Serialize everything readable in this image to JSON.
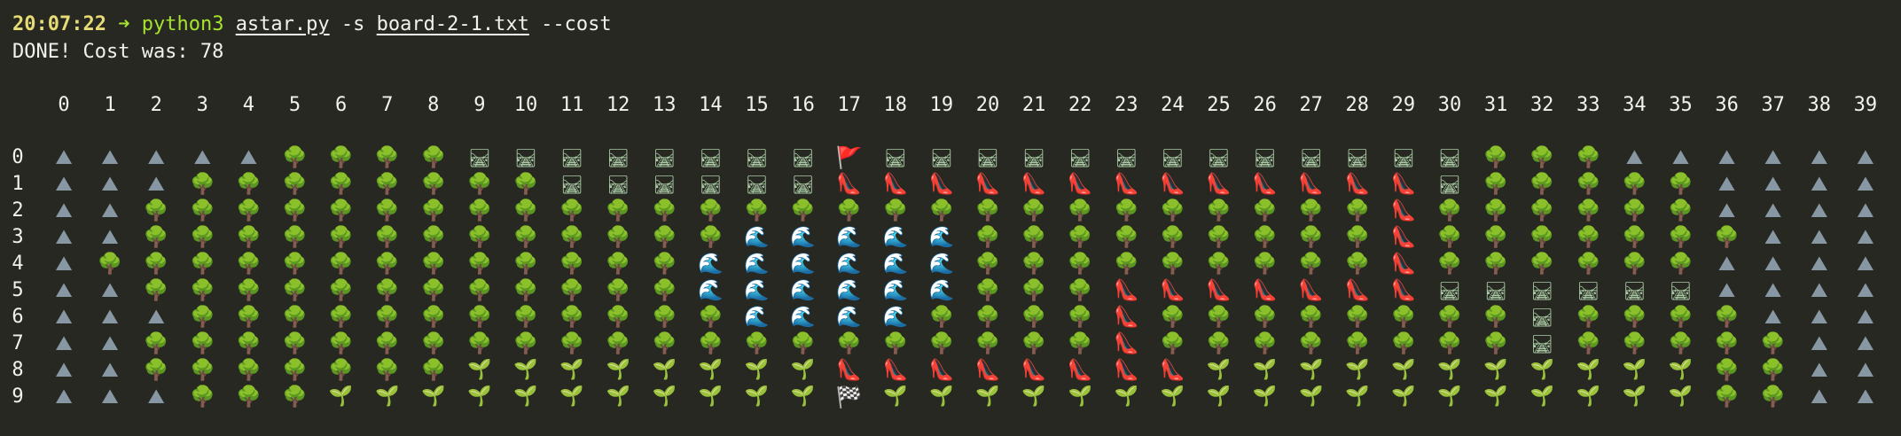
{
  "terminal": {
    "prompt_time": "20:07:22",
    "prompt_arrow": "➜",
    "command": "python3",
    "script_arg": "astar.py",
    "flag_s": "-s",
    "board_arg": "board-2-1.txt",
    "flag_cost": "--cost",
    "output_line": "DONE! Cost was: 78"
  },
  "board": {
    "column_labels": [
      "0",
      "1",
      "2",
      "3",
      "4",
      "5",
      "6",
      "7",
      "8",
      "9",
      "10",
      "11",
      "12",
      "13",
      "14",
      "15",
      "16",
      "17",
      "18",
      "19",
      "20",
      "21",
      "22",
      "23",
      "24",
      "25",
      "26",
      "27",
      "28",
      "29",
      "30",
      "31",
      "32",
      "33",
      "34",
      "35",
      "36",
      "37",
      "38",
      "39"
    ],
    "row_labels": [
      "0",
      "1",
      "2",
      "3",
      "4",
      "5",
      "6",
      "7",
      "8",
      "9"
    ],
    "legend_glyphs": {
      "T": "🌳",
      "M": "⛰",
      "W": "🌊",
      "B": "🛤",
      "S": "🚩",
      "G": "🏁",
      "P": "👠",
      "g": "🌱"
    },
    "terrain_names": {
      "T": "tree",
      "M": "mountain",
      "W": "water",
      "B": "bridge",
      "S": "start-flag",
      "G": "goal-flag",
      "P": "path-heel",
      "g": "sprout"
    },
    "rows": [
      "MMMMMTTTTBBBBBBBBSBBBBBBBBBBBBBTTTMMMMMM",
      "MMMTTTTTTTTBBBBBBPPPPPPPPPPPPPBTTTTTMMMM",
      "MMTTTTTTTTTTTTTTTTTTTTTTTTTTTPTTTTTTMMMM",
      "MMTTTTTTTTTTTTTWWWWWTTTTTTTTTPTTTTTTTMMM",
      "MTTTTTTTTTTTTTWWWWWWTTTTTTTTTPTTTTTTMMMM",
      "MMTTTTTTTTTTTTWWWWWWTTTPPPPPPPBBBBBBMMMM",
      "MMMTTTTTTTTTTTTWWWWTTTTPTTTTTTTTBTTTTMMM",
      "MMTTTTTTTTTTTTTTTTTTTTTPTTTTTTTTBTTTTTMM",
      "MMTTTTTTTggggggggPPPPPPPPgggggggggggTTMM",
      "MMMTTTgggggggggggGggggggggggggggggggTTMM"
    ]
  }
}
